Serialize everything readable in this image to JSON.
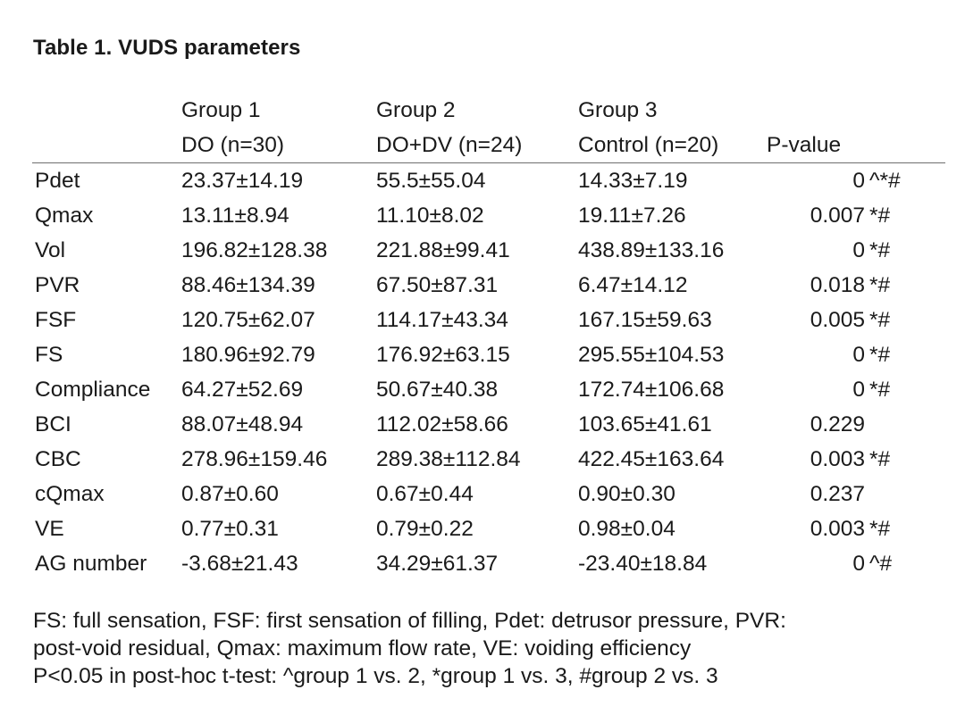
{
  "title": "Table 1. VUDS parameters",
  "columns": [
    {
      "group": "Group 1",
      "subtitle": "DO (n=30)"
    },
    {
      "group": "Group 2",
      "subtitle": "DO+DV (n=24)"
    },
    {
      "group": "Group 3",
      "subtitle": "Control (n=20)"
    },
    {
      "group": "",
      "subtitle": "P-value"
    }
  ],
  "rows": [
    {
      "param": "Pdet",
      "g1": "23.37±14.19",
      "g2": "55.5±55.04",
      "g3": "14.33±7.19",
      "p": "0",
      "sig": "^*#"
    },
    {
      "param": "Qmax",
      "g1": "13.11±8.94",
      "g2": "11.10±8.02",
      "g3": "19.11±7.26",
      "p": "0.007",
      "sig": "*#"
    },
    {
      "param": "Vol",
      "g1": "196.82±128.38",
      "g2": "221.88±99.41",
      "g3": "438.89±133.16",
      "p": "0",
      "sig": "*#"
    },
    {
      "param": "PVR",
      "g1": "88.46±134.39",
      "g2": "67.50±87.31",
      "g3": "6.47±14.12",
      "p": "0.018",
      "sig": "*#"
    },
    {
      "param": "FSF",
      "g1": "120.75±62.07",
      "g2": "114.17±43.34",
      "g3": "167.15±59.63",
      "p": "0.005",
      "sig": "*#"
    },
    {
      "param": "FS",
      "g1": "180.96±92.79",
      "g2": "176.92±63.15",
      "g3": "295.55±104.53",
      "p": "0",
      "sig": "*#"
    },
    {
      "param": "Compliance",
      "g1": "64.27±52.69",
      "g2": "50.67±40.38",
      "g3": "172.74±106.68",
      "p": "0",
      "sig": "*#"
    },
    {
      "param": "BCI",
      "g1": "88.07±48.94",
      "g2": "112.02±58.66",
      "g3": "103.65±41.61",
      "p": "0.229",
      "sig": ""
    },
    {
      "param": "CBC",
      "g1": "278.96±159.46",
      "g2": "289.38±112.84",
      "g3": "422.45±163.64",
      "p": "0.003",
      "sig": "*#"
    },
    {
      "param": "cQmax",
      "g1": "0.87±0.60",
      "g2": "0.67±0.44",
      "g3": "0.90±0.30",
      "p": "0.237",
      "sig": ""
    },
    {
      "param": "VE",
      "g1": "0.77±0.31",
      "g2": "0.79±0.22",
      "g3": "0.98±0.04",
      "p": "0.003",
      "sig": "*#"
    },
    {
      "param": "AG number",
      "g1": "-3.68±21.43",
      "g2": "34.29±61.37",
      "g3": "-23.40±18.84",
      "p": "0",
      "sig": "^#"
    }
  ],
  "footnotes": [
    "FS: full sensation, FSF: first sensation of filling, Pdet: detrusor pressure, PVR:",
    "post-void residual, Qmax: maximum flow rate, VE: voiding efficiency",
    "P<0.05 in post-hoc t-test: ^group 1 vs. 2, *group 1 vs. 3, #group 2 vs. 3"
  ]
}
